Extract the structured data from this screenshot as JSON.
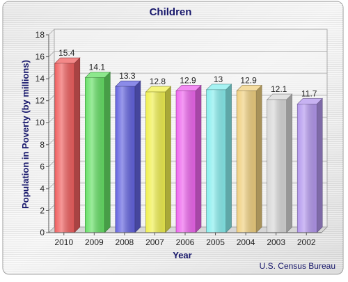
{
  "chart_data": {
    "type": "bar",
    "title": "Children",
    "xlabel": "Year",
    "ylabel": "Population in Poverty (by millions)",
    "source": "U.S. Census Bureau",
    "categories": [
      "2010",
      "2009",
      "2008",
      "2007",
      "2006",
      "2005",
      "2004",
      "2003",
      "2002"
    ],
    "values": [
      15.4,
      14.1,
      13.3,
      12.8,
      12.9,
      13,
      12.9,
      12.1,
      11.7
    ],
    "value_labels": [
      "15.4",
      "14.1",
      "13.3",
      "12.8",
      "12.9",
      "13",
      "12.9",
      "12.1",
      "11.7"
    ],
    "ylim": [
      0,
      18
    ],
    "yticks": [
      0,
      2,
      4,
      6,
      8,
      10,
      12,
      14,
      16,
      18
    ],
    "grid": true,
    "legend": "none",
    "colors": [
      "#f06060",
      "#66e066",
      "#6464e0",
      "#f0f050",
      "#ee66ee",
      "#88eeee",
      "#f0d080",
      "#d8d8d8",
      "#b498ee"
    ]
  }
}
